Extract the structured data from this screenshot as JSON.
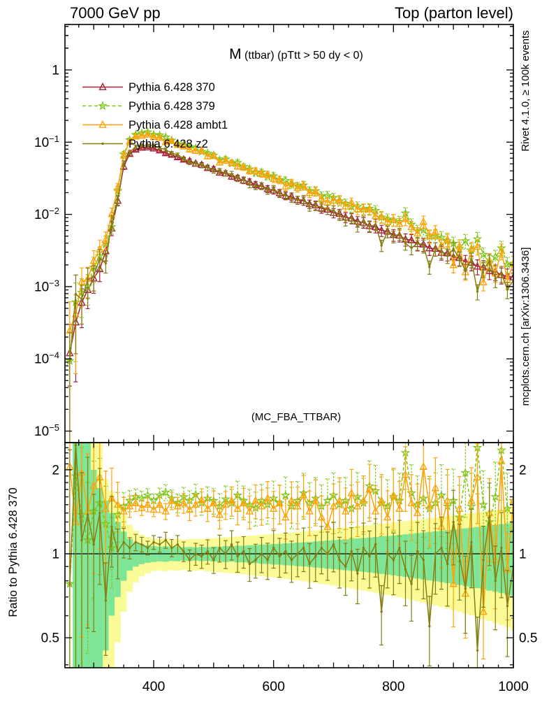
{
  "header": {
    "left": "7000 GeV pp",
    "right": "Top (parton level)"
  },
  "title": {
    "prefix": "M",
    "rest": " (ttbar) (pTtt > 50 dy < 0)"
  },
  "watermark": "(MC_FBA_TTBAR)",
  "side_notes": {
    "top": "Rivet 4.1.0, ≥ 100k events",
    "bottom": "mcplots.cern.ch [arXiv:1306.3436]"
  },
  "ratio_axis_title": "Ratio to Pythia 6.428 370",
  "colors": {
    "frame": "#000000",
    "note_gray": "#919191",
    "watermark_gray": "#9a9a9a"
  },
  "chart_data": {
    "type": "line",
    "title": "M (ttbar) (pTtt > 50 dy < 0)",
    "reference_series": "Pythia 6.428 370",
    "x": [
      260,
      270,
      280,
      290,
      300,
      310,
      320,
      330,
      340,
      350,
      360,
      370,
      380,
      390,
      400,
      410,
      420,
      430,
      440,
      450,
      460,
      470,
      480,
      490,
      500,
      510,
      520,
      530,
      540,
      550,
      560,
      570,
      580,
      590,
      600,
      610,
      620,
      630,
      640,
      650,
      660,
      670,
      680,
      690,
      700,
      710,
      720,
      730,
      740,
      750,
      760,
      770,
      780,
      790,
      800,
      810,
      820,
      830,
      840,
      850,
      860,
      870,
      880,
      890,
      900,
      910,
      920,
      930,
      940,
      950,
      960,
      970,
      980,
      990,
      1000
    ],
    "series": [
      {
        "name": "Pythia 6.428 370",
        "color": "#a22231",
        "marker": "triangle",
        "line": "solid",
        "values": [
          0.00012,
          0.00032,
          0.0006,
          0.0009,
          0.0013,
          0.00175,
          0.0031,
          0.0064,
          0.0155,
          0.046,
          0.069,
          0.079,
          0.084,
          0.085,
          0.082,
          0.077,
          0.0705,
          0.067,
          0.062,
          0.0575,
          0.055,
          0.0505,
          0.0485,
          0.044,
          0.0425,
          0.038,
          0.037,
          0.0335,
          0.032,
          0.0295,
          0.0282,
          0.0258,
          0.0247,
          0.0225,
          0.0215,
          0.0198,
          0.0181,
          0.0176,
          0.0158,
          0.0154,
          0.0139,
          0.0134,
          0.0121,
          0.0117,
          0.0105,
          0.0102,
          0.0091,
          0.0088,
          0.008,
          0.0077,
          0.0069,
          0.0067,
          0.006,
          0.0058,
          0.0052,
          0.0051,
          0.0045,
          0.0044,
          0.0039,
          0.00385,
          0.0034,
          0.00335,
          0.00295,
          0.0029,
          0.00255,
          0.0025,
          0.0022,
          0.00215,
          0.0019,
          0.00185,
          0.00165,
          0.0016,
          0.00145,
          0.0014,
          0.00135
        ]
      },
      {
        "name": "Pythia 6.428 379",
        "color": "#7ac413",
        "marker": "star",
        "line": "dashed",
        "ratio_to_ref": [
          0.78,
          1.9,
          1.38,
          1.12,
          1.42,
          1.52,
          1.28,
          1.05,
          1.38,
          1.48,
          1.55,
          1.6,
          1.58,
          1.62,
          1.55,
          1.62,
          1.66,
          1.58,
          1.52,
          1.6,
          1.55,
          1.63,
          1.52,
          1.58,
          1.55,
          1.48,
          1.57,
          1.52,
          1.62,
          1.55,
          1.5,
          1.46,
          1.55,
          1.5,
          1.58,
          1.52,
          1.62,
          1.48,
          1.55,
          1.65,
          1.52,
          1.58,
          1.48,
          1.55,
          1.62,
          1.5,
          1.55,
          1.45,
          1.6,
          1.52,
          1.75,
          1.68,
          1.52,
          1.48,
          1.6,
          1.55,
          2.3,
          1.65,
          1.5,
          1.58,
          1.45,
          1.52,
          1.62,
          1.48,
          1.55,
          1.35,
          1.95,
          1.48,
          2.4,
          1.5,
          1.3,
          1.6,
          2.35,
          1.45,
          1.55
        ]
      },
      {
        "name": "Pythia 6.428 ambt1",
        "color": "#fba40a",
        "marker": "triangle",
        "line": "solid",
        "ratio_to_ref": [
          2.05,
          1.3,
          1.95,
          1.42,
          1.75,
          1.88,
          1.45,
          1.58,
          1.5,
          1.42,
          1.48,
          1.52,
          1.46,
          1.5,
          1.44,
          1.5,
          1.42,
          1.55,
          1.48,
          1.52,
          1.44,
          1.5,
          1.56,
          1.45,
          1.52,
          1.38,
          1.5,
          1.55,
          1.45,
          1.52,
          1.42,
          1.55,
          1.48,
          1.58,
          1.45,
          1.52,
          1.35,
          1.55,
          1.48,
          1.62,
          1.42,
          1.55,
          1.35,
          1.25,
          1.48,
          1.55,
          1.42,
          1.65,
          1.48,
          1.55,
          1.7,
          1.42,
          1.55,
          1.35,
          1.62,
          1.45,
          1.92,
          1.52,
          1.4,
          2.05,
          1.48,
          1.72,
          1.25,
          1.55,
          0.78,
          1.45,
          0.72,
          1.55,
          1.88,
          0.62,
          1.4,
          0.95,
          2.15,
          0.88,
          1.55
        ]
      },
      {
        "name": "Pythia 6.428 z2",
        "color": "#847e10",
        "marker": "dot",
        "line": "solid",
        "ratio_to_ref": [
          0.78,
          2.45,
          1.12,
          1.38,
          1.08,
          1.4,
          0.68,
          1.25,
          1.02,
          1.1,
          1.05,
          1.1,
          1.08,
          1.05,
          1.1,
          1.08,
          1.12,
          1.05,
          1.08,
          1.02,
          0.95,
          1.0,
          0.98,
          1.02,
          0.95,
          1.05,
          1.0,
          1.08,
          0.98,
          1.02,
          0.92,
          0.95,
          1.0,
          0.95,
          1.05,
          0.98,
          1.02,
          0.95,
          1.0,
          1.05,
          0.92,
          0.98,
          1.05,
          1.0,
          1.08,
          0.95,
          0.9,
          1.02,
          0.85,
          1.05,
          0.98,
          1.08,
          0.62,
          1.0,
          0.95,
          1.05,
          0.88,
          0.78,
          1.02,
          0.95,
          0.55,
          1.0,
          1.05,
          0.92,
          1.3,
          0.98,
          0.75,
          1.1,
          0.45,
          0.95,
          1.35,
          0.8,
          1.05,
          0.65,
          0.9
        ]
      }
    ],
    "relerr": [
      1.5,
      0.85,
      0.55,
      0.45,
      0.38,
      0.33,
      0.27,
      0.21,
      0.15,
      0.09,
      0.065,
      0.05,
      0.045,
      0.042,
      0.042,
      0.046,
      0.049,
      0.053,
      0.057,
      0.06,
      0.064,
      0.067,
      0.071,
      0.074,
      0.078,
      0.082,
      0.085,
      0.089,
      0.092,
      0.096,
      0.1,
      0.103,
      0.107,
      0.11,
      0.114,
      0.118,
      0.121,
      0.125,
      0.128,
      0.132,
      0.135,
      0.139,
      0.143,
      0.146,
      0.15,
      0.153,
      0.157,
      0.16,
      0.164,
      0.168,
      0.171,
      0.175,
      0.178,
      0.182,
      0.185,
      0.189,
      0.193,
      0.196,
      0.2,
      0.203,
      0.207,
      0.21,
      0.214,
      0.218,
      0.221,
      0.225,
      0.228,
      0.232,
      0.235,
      0.239,
      0.243,
      0.246,
      0.25,
      0.253,
      0.257
    ],
    "ratio_err_scale": 1.35,
    "ref_err_min_factor": 0.35,
    "bands": {
      "green_color": "#7fe596",
      "yellow_color": "#fafa96",
      "green_halfwidth": [
        2.5,
        2.5,
        2.5,
        1.5,
        1.0,
        0.72,
        0.55,
        0.4,
        0.3,
        0.2,
        0.13,
        0.1,
        0.082,
        0.072,
        0.065,
        0.061,
        0.064,
        0.058,
        0.06,
        0.055,
        0.058,
        0.054,
        0.059,
        0.056,
        0.062,
        0.06,
        0.066,
        0.063,
        0.069,
        0.068,
        0.073,
        0.074,
        0.079,
        0.08,
        0.085,
        0.086,
        0.091,
        0.092,
        0.097,
        0.099,
        0.103,
        0.107,
        0.111,
        0.115,
        0.119,
        0.123,
        0.127,
        0.131,
        0.135,
        0.139,
        0.143,
        0.148,
        0.153,
        0.158,
        0.163,
        0.169,
        0.174,
        0.18,
        0.185,
        0.191,
        0.197,
        0.203,
        0.209,
        0.215,
        0.221,
        0.227,
        0.234,
        0.241,
        0.247,
        0.254,
        0.262,
        0.269,
        0.277,
        0.286,
        0.295
      ],
      "yellow_halfwidth": [
        2.5,
        2.5,
        2.5,
        2.5,
        2.5,
        2.0,
        0.85,
        0.68,
        0.52,
        0.38,
        0.27,
        0.21,
        0.17,
        0.148,
        0.132,
        0.128,
        0.134,
        0.126,
        0.131,
        0.124,
        0.129,
        0.131,
        0.127,
        0.134,
        0.137,
        0.141,
        0.145,
        0.148,
        0.153,
        0.156,
        0.161,
        0.165,
        0.169,
        0.174,
        0.178,
        0.183,
        0.188,
        0.193,
        0.198,
        0.203,
        0.209,
        0.214,
        0.22,
        0.225,
        0.231,
        0.237,
        0.243,
        0.249,
        0.255,
        0.261,
        0.268,
        0.274,
        0.281,
        0.288,
        0.295,
        0.302,
        0.309,
        0.317,
        0.324,
        0.332,
        0.34,
        0.348,
        0.356,
        0.364,
        0.372,
        0.381,
        0.39,
        0.398,
        0.407,
        0.417,
        0.426,
        0.436,
        0.445,
        0.455,
        0.47
      ]
    },
    "axes": {
      "x": {
        "min": 252,
        "max": 1000,
        "major_ticks": [
          400,
          600,
          800,
          1000
        ],
        "labels": [
          "400",
          "600",
          "800",
          "1000"
        ],
        "minor_step": 25
      },
      "y_main": {
        "scale": "log",
        "decades": [
          0,
          -1,
          -2,
          -3,
          -4,
          -5
        ]
      },
      "y_ratio": {
        "scale": "log",
        "labeled": [
          2,
          1,
          0.5
        ],
        "minor": [
          2.4,
          2.3,
          2.2,
          2.1,
          1.9,
          1.8,
          1.7,
          1.6,
          1.5,
          1.4,
          1.3,
          1.2,
          1.1,
          0.9,
          0.8,
          0.7,
          0.6,
          0.4
        ]
      }
    },
    "legend": [
      {
        "label": "Pythia 6.428 370"
      },
      {
        "label": "Pythia 6.428 379"
      },
      {
        "label": "Pythia 6.428 ambt1"
      },
      {
        "label": "Pythia 6.428 z2"
      }
    ]
  }
}
